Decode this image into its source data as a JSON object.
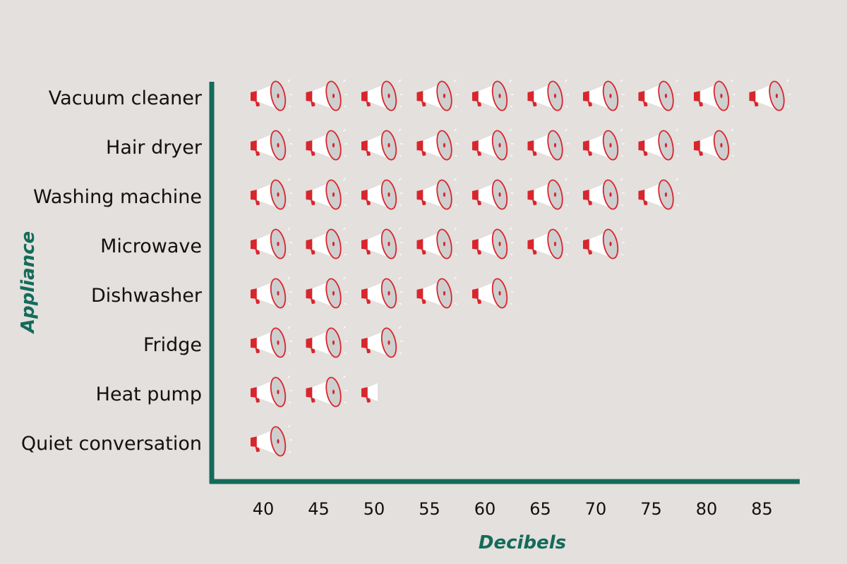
{
  "colors": {
    "background": "#e3e0dd",
    "axis": "#146b5a",
    "axis_title": "#146b5a",
    "icon_red": "#d9252c",
    "icon_white": "#ffffff",
    "icon_grey": "#cfcfcf"
  },
  "chart_data": {
    "type": "pictograph",
    "icon": "megaphone-icon",
    "icon_unit": 5,
    "xlabel": "Decibels",
    "ylabel": "Appliance",
    "x_ticks": [
      "40",
      "45",
      "50",
      "55",
      "60",
      "65",
      "70",
      "75",
      "80",
      "85"
    ],
    "xlim": [
      40,
      85
    ],
    "categories": [
      "Vacuum  cleaner",
      "Hair dryer",
      "Washing machine",
      "Microwave",
      "Dishwasher",
      "Fridge",
      "Heat pump",
      "Quiet conversation"
    ],
    "values": [
      85,
      80,
      75,
      70,
      60,
      50,
      46,
      40
    ]
  }
}
